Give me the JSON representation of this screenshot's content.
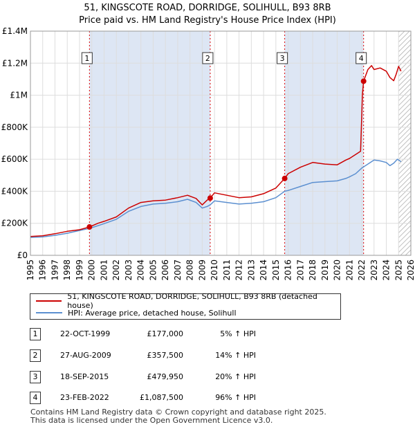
{
  "title_line1": "51, KINGSCOTE ROAD, DORRIDGE, SOLIHULL, B93 8RB",
  "title_line2": "Price paid vs. HM Land Registry's House Price Index (HPI)",
  "colors": {
    "property_line": "#cc0000",
    "hpi_line": "#5b8fd0",
    "shade": "#dde6f4",
    "grid": "#dddddd",
    "vline": "#dd0000"
  },
  "chart_data": {
    "type": "line",
    "xlim": [
      1995,
      2026
    ],
    "ylim": [
      0,
      1400000
    ],
    "ytick_values": [
      0,
      200000,
      400000,
      600000,
      800000,
      1000000,
      1200000,
      1400000
    ],
    "ytick_labels": [
      "£0",
      "£200K",
      "£400K",
      "£600K",
      "£800K",
      "£1M",
      "£1.2M",
      "£1.4M"
    ],
    "xtick_labels": [
      "1995",
      "1996",
      "1997",
      "1998",
      "1999",
      "2000",
      "2001",
      "2002",
      "2003",
      "2004",
      "2005",
      "2006",
      "2007",
      "2008",
      "2009",
      "2010",
      "2011",
      "2012",
      "2013",
      "2014",
      "2015",
      "2016",
      "2017",
      "2018",
      "2019",
      "2020",
      "2021",
      "2022",
      "2023",
      "2024",
      "2025",
      "2026"
    ],
    "shaded_periods": [
      [
        1999.81,
        2009.65
      ],
      [
        2015.72,
        2022.15
      ]
    ],
    "hatched_from": 2025.0,
    "series": [
      {
        "name": "51, KINGSCOTE ROAD, DORRIDGE, SOLIHULL, B93 8RB (detached house)",
        "x": [
          1995.0,
          1996.0,
          1997.0,
          1998.0,
          1999.0,
          1999.81,
          2000.5,
          2001.0,
          2002.0,
          2003.0,
          2004.0,
          2005.0,
          2006.0,
          2007.0,
          2007.8,
          2008.5,
          2009.0,
          2009.4,
          2009.65,
          2010.0,
          2011.0,
          2012.0,
          2013.0,
          2014.0,
          2015.0,
          2015.72,
          2016.0,
          2017.0,
          2018.0,
          2019.0,
          2020.0,
          2020.7,
          2021.0,
          2021.5,
          2021.9,
          2022.0,
          2022.05,
          2022.15,
          2022.5,
          2022.8,
          2023.0,
          2023.5,
          2024.0,
          2024.3,
          2024.6,
          2024.8,
          2025.0,
          2025.2
        ],
        "values": [
          118000,
          122000,
          135000,
          150000,
          160000,
          177000,
          200000,
          212000,
          240000,
          295000,
          330000,
          340000,
          345000,
          360000,
          375000,
          355000,
          315000,
          345000,
          357500,
          390000,
          375000,
          360000,
          365000,
          385000,
          420000,
          479950,
          510000,
          550000,
          580000,
          570000,
          565000,
          595000,
          605000,
          630000,
          650000,
          870000,
          1000000,
          1087500,
          1160000,
          1185000,
          1160000,
          1170000,
          1150000,
          1110000,
          1090000,
          1130000,
          1180000,
          1150000
        ]
      },
      {
        "name": "HPI: Average price, detached house, Solihull",
        "x": [
          1995.0,
          1996.0,
          1997.0,
          1998.0,
          1999.0,
          1999.81,
          2000.5,
          2001.0,
          2002.0,
          2003.0,
          2004.0,
          2005.0,
          2006.0,
          2007.0,
          2007.8,
          2008.5,
          2009.0,
          2009.4,
          2009.65,
          2010.0,
          2011.0,
          2012.0,
          2013.0,
          2014.0,
          2015.0,
          2015.72,
          2016.0,
          2017.0,
          2018.0,
          2019.0,
          2020.0,
          2020.7,
          2021.0,
          2021.5,
          2022.0,
          2022.5,
          2023.0,
          2023.5,
          2024.0,
          2024.3,
          2024.6,
          2024.9,
          2025.2
        ],
        "values": [
          112000,
          115000,
          125000,
          138000,
          155000,
          168000,
          185000,
          198000,
          225000,
          275000,
          305000,
          320000,
          325000,
          335000,
          350000,
          330000,
          295000,
          305000,
          315000,
          340000,
          330000,
          320000,
          325000,
          335000,
          360000,
          400000,
          405000,
          430000,
          455000,
          460000,
          465000,
          480000,
          490000,
          510000,
          545000,
          570000,
          595000,
          590000,
          580000,
          560000,
          575000,
          600000,
          585000
        ]
      }
    ],
    "sales": [
      {
        "label": "1",
        "x": 1999.81,
        "value": 177000
      },
      {
        "label": "2",
        "x": 2009.65,
        "value": 357500
      },
      {
        "label": "3",
        "x": 2015.72,
        "value": 479950
      },
      {
        "label": "4",
        "x": 2022.15,
        "value": 1087500
      }
    ]
  },
  "legend": {
    "property_label": "51, KINGSCOTE ROAD, DORRIDGE, SOLIHULL, B93 8RB (detached house)",
    "hpi_label": "HPI: Average price, detached house, Solihull"
  },
  "transactions": [
    {
      "num": "1",
      "date": "22-OCT-1999",
      "price": "£177,000",
      "hpi": "5% ↑ HPI"
    },
    {
      "num": "2",
      "date": "27-AUG-2009",
      "price": "£357,500",
      "hpi": "14% ↑ HPI"
    },
    {
      "num": "3",
      "date": "18-SEP-2015",
      "price": "£479,950",
      "hpi": "20% ↑ HPI"
    },
    {
      "num": "4",
      "date": "23-FEB-2022",
      "price": "£1,087,500",
      "hpi": "96% ↑ HPI"
    }
  ],
  "footer_line1": "Contains HM Land Registry data © Crown copyright and database right 2025.",
  "footer_line2": "This data is licensed under the Open Government Licence v3.0."
}
